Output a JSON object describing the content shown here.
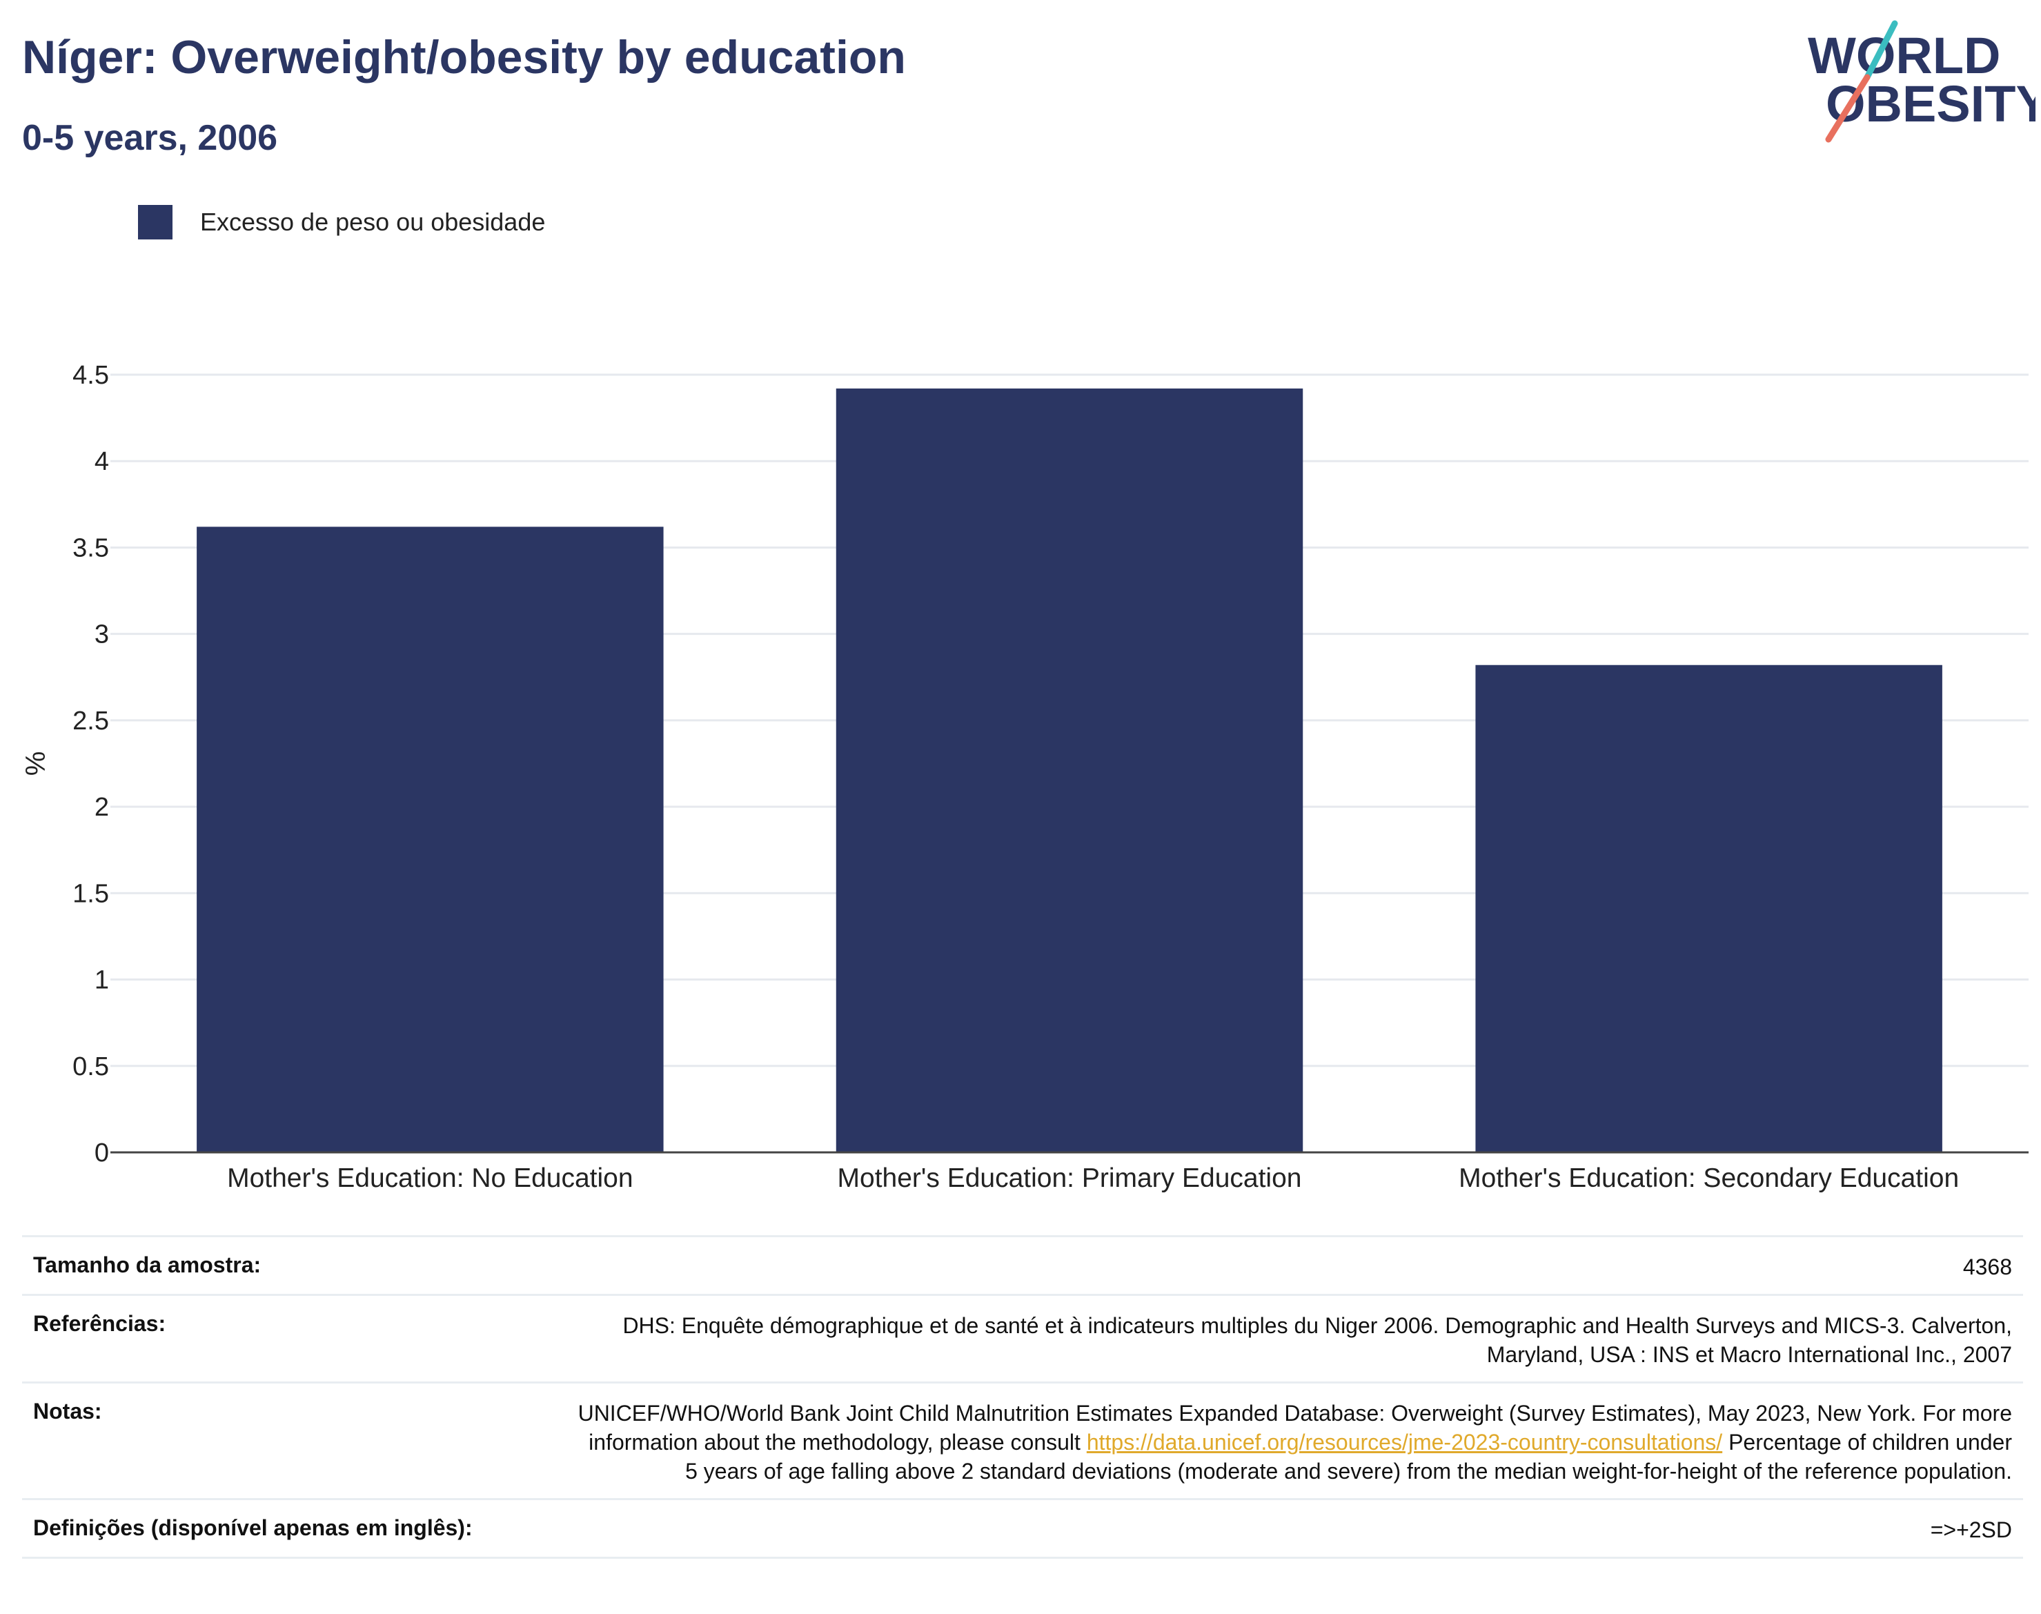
{
  "header": {
    "title": "Níger: Overweight/obesity by education",
    "subtitle": "0-5 years, 2006"
  },
  "logo": {
    "line1": "WORLD",
    "line2": "OBESITY"
  },
  "chart_data": {
    "type": "bar",
    "categories": [
      "Mother's Education: No Education",
      "Mother's Education: Primary Education",
      "Mother's Education: Secondary Education"
    ],
    "series": [
      {
        "name": "Excesso de peso ou obesidade",
        "values": [
          3.62,
          4.42,
          2.82
        ],
        "color": "#2b3663"
      }
    ],
    "ylabel": "%",
    "ylim": [
      0,
      4.5
    ],
    "yticks": [
      0,
      0.5,
      1,
      1.5,
      2,
      2.5,
      3,
      3.5,
      4,
      4.5
    ],
    "ytick_labels": [
      "0",
      "0.5",
      "1",
      "1.5",
      "2",
      "2.5",
      "3",
      "3.5",
      "4",
      "4.5"
    ],
    "grid": true,
    "legend_position": "top-left"
  },
  "info": {
    "sample_label": "Tamanho da amostra:",
    "sample_value": "4368",
    "references_label": "Referências:",
    "references_value": "DHS: Enquête démographique et de santé et à indicateurs multiples du Niger 2006. Demographic and Health Surveys and MICS-3. Calverton, Maryland, USA : INS et Macro International Inc., 2007",
    "notes_label": "Notas:",
    "notes_text_before": "UNICEF/WHO/World Bank Joint Child Malnutrition Estimates Expanded Database: Overweight (Survey Estimates), May 2023, New York. For more information about the methodology, please consult ",
    "notes_link": "https://data.unicef.org/resources/jme-2023-country-consultations/",
    "notes_text_after": " Percentage of children under 5 years of age falling above 2 standard deviations (moderate and severe) from the median weight-for-height of the reference population.",
    "definitions_label": "Definições (disponível apenas em inglês):",
    "definitions_value": "=>+2SD"
  }
}
